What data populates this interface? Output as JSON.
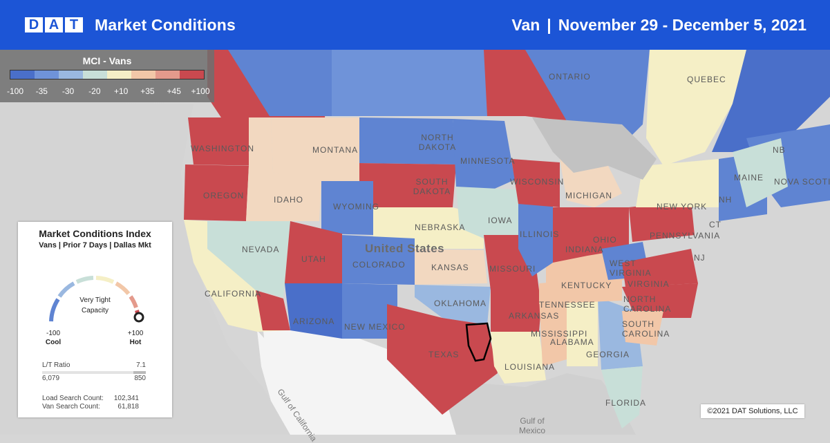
{
  "header": {
    "logo_letters": [
      "D",
      "A",
      "T"
    ],
    "title": "Market Conditions",
    "equipment": "Van",
    "separator": "|",
    "date_range": "November 29 - December 5, 2021"
  },
  "legend": {
    "title": "MCI - Vans",
    "swatch_colors": [
      "#4a6fc9",
      "#6f93d9",
      "#9ab8e0",
      "#c8dfd8",
      "#f5efc6",
      "#f2c7a8",
      "#e49a8c",
      "#c9494f"
    ],
    "ticks": [
      "-100",
      "-35",
      "-30",
      "-20",
      "+10",
      "+35",
      "+45",
      "+100"
    ]
  },
  "map_labels": {
    "states": [
      "WASHINGTON",
      "OREGON",
      "IDAHO",
      "MONTANA",
      "NORTH DAKOTA",
      "SOUTH DAKOTA",
      "WYOMING",
      "NEBRASKA",
      "NEVADA",
      "UTAH",
      "COLORADO",
      "KANSAS",
      "CALIFORNIA",
      "ARIZONA",
      "NEW MEXICO",
      "OKLAHOMA",
      "TEXAS",
      "MINNESOTA",
      "IOWA",
      "MISSOURI",
      "ARKANSAS",
      "LOUISIANA",
      "MISSISSIPPI",
      "ALABAMA",
      "GEORGIA",
      "FLORIDA",
      "TENNESSEE",
      "KENTUCKY",
      "ILLINOIS",
      "INDIANA",
      "OHIO",
      "MICHIGAN",
      "WISCONSIN",
      "WEST VIRGINIA",
      "VIRGINIA",
      "NORTH CAROLINA",
      "SOUTH CAROLINA",
      "PENNSYLVANIA",
      "NEW YORK",
      "MAINE",
      "NJ",
      "NH",
      "CT",
      "NB",
      "NOVA SCOTIA",
      "ONTARIO",
      "QUEBEC"
    ],
    "country": "United States",
    "water": [
      "Gulf of California",
      "Gulf of Mexico"
    ]
  },
  "card": {
    "title": "Market Conditions Index",
    "subtitle": "Vans | Prior 7 Days | Dallas Mkt",
    "status_line1": "Very Tight",
    "status_line2": "Capacity",
    "gauge_value": 100,
    "cool_value": "-100",
    "cool_label": "Cool",
    "hot_value": "+100",
    "hot_label": "Hot",
    "lt_label": "L/T Ratio",
    "lt_value": "7.1",
    "loads": "6,079",
    "trucks": "850",
    "load_search_label": "Load Search Count:",
    "load_search_value": "102,341",
    "van_search_label": "Van Search Count:",
    "van_search_value": "61,818"
  },
  "copyright": "©2021 DAT Solutions, LLC"
}
